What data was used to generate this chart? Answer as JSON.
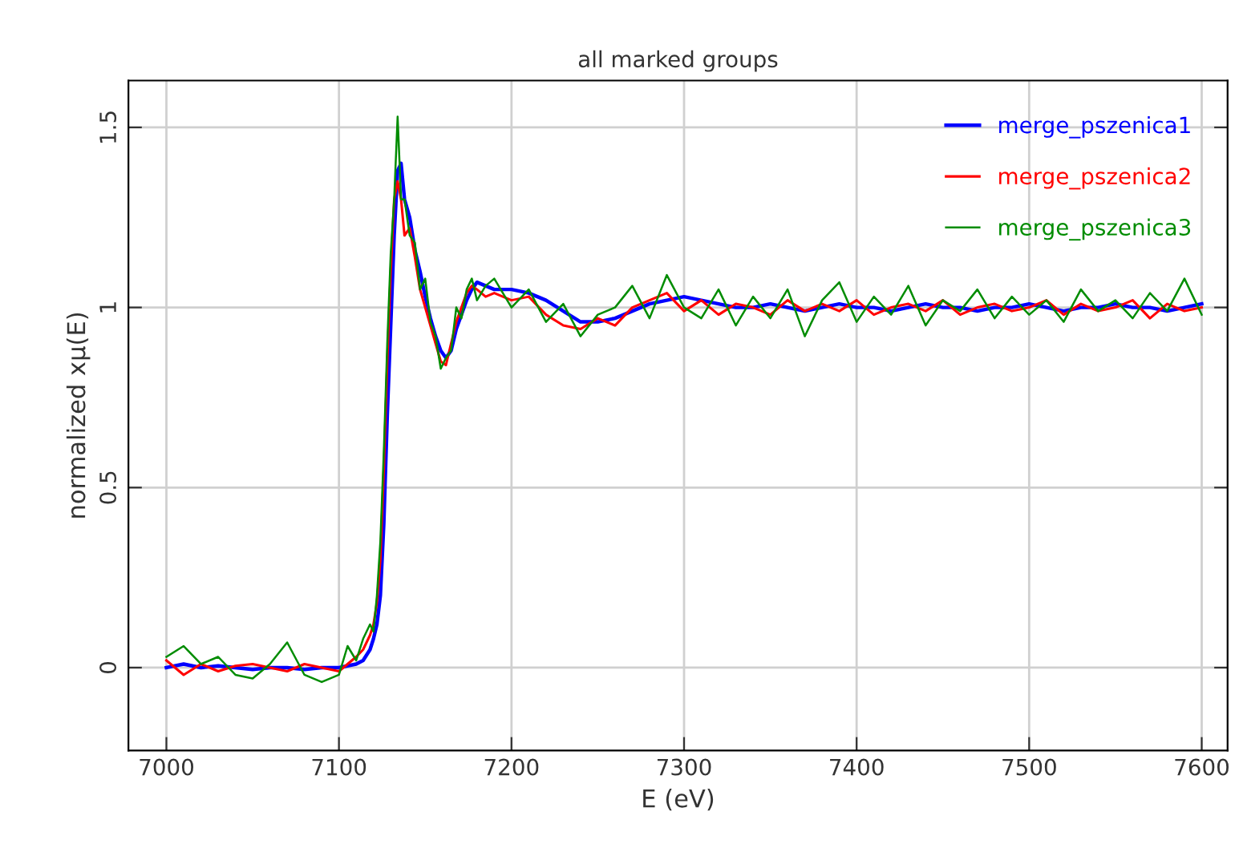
{
  "chart_data": {
    "type": "line",
    "title": "all marked groups",
    "xlabel": "E (eV)",
    "ylabel": "normalized xμ(E)",
    "x": [
      7000,
      7010,
      7020,
      7030,
      7040,
      7050,
      7060,
      7070,
      7080,
      7090,
      7100,
      7105,
      7110,
      7114,
      7118,
      7120,
      7122,
      7124,
      7126,
      7128,
      7130,
      7132,
      7134,
      7136,
      7138,
      7141,
      7144,
      7147,
      7150,
      7153,
      7156,
      7159,
      7162,
      7165,
      7168,
      7171,
      7174,
      7177,
      7180,
      7185,
      7190,
      7200,
      7210,
      7220,
      7230,
      7240,
      7250,
      7260,
      7270,
      7280,
      7290,
      7300,
      7310,
      7320,
      7330,
      7340,
      7350,
      7360,
      7370,
      7380,
      7390,
      7400,
      7410,
      7420,
      7430,
      7440,
      7450,
      7460,
      7470,
      7480,
      7490,
      7500,
      7510,
      7520,
      7530,
      7540,
      7550,
      7560,
      7570,
      7580,
      7590,
      7600
    ],
    "series": [
      {
        "name": "merge_pszenica1",
        "color": "#0000ff",
        "values": [
          0,
          0.01,
          0,
          0.005,
          0,
          -0.005,
          0,
          0,
          -0.005,
          0,
          0,
          0.005,
          0.01,
          0.02,
          0.05,
          0.08,
          0.12,
          0.2,
          0.4,
          0.7,
          0.95,
          1.2,
          1.38,
          1.4,
          1.3,
          1.25,
          1.16,
          1.1,
          1.03,
          0.97,
          0.92,
          0.88,
          0.86,
          0.88,
          0.94,
          0.98,
          1.02,
          1.05,
          1.07,
          1.06,
          1.05,
          1.05,
          1.04,
          1.02,
          0.99,
          0.96,
          0.96,
          0.97,
          0.99,
          1.01,
          1.02,
          1.03,
          1.02,
          1.01,
          1.0,
          1.0,
          1.01,
          1.0,
          0.99,
          1.0,
          1.01,
          1.0,
          1.0,
          0.99,
          1.0,
          1.01,
          1.0,
          1.0,
          0.99,
          1.0,
          1.0,
          1.01,
          1.0,
          0.99,
          1.0,
          1.0,
          1.01,
          1.0,
          1.0,
          0.99,
          1.0,
          1.01
        ]
      },
      {
        "name": "merge_pszenica2",
        "color": "#ff0000",
        "values": [
          0.02,
          -0.02,
          0.01,
          -0.01,
          0.005,
          0.01,
          0,
          -0.01,
          0.01,
          0,
          -0.01,
          0.01,
          0.03,
          0.05,
          0.09,
          0.12,
          0.18,
          0.3,
          0.55,
          0.85,
          1.1,
          1.3,
          1.35,
          1.3,
          1.2,
          1.22,
          1.14,
          1.05,
          1.0,
          0.95,
          0.9,
          0.85,
          0.84,
          0.9,
          0.96,
          1.0,
          1.04,
          1.06,
          1.05,
          1.03,
          1.04,
          1.02,
          1.03,
          0.98,
          0.95,
          0.94,
          0.97,
          0.95,
          1.0,
          1.02,
          1.04,
          0.99,
          1.02,
          0.98,
          1.01,
          1.0,
          0.98,
          1.02,
          0.99,
          1.01,
          0.99,
          1.02,
          0.98,
          1.0,
          1.01,
          0.99,
          1.02,
          0.98,
          1.0,
          1.01,
          0.99,
          1.0,
          1.02,
          0.98,
          1.01,
          0.99,
          1.0,
          1.02,
          0.97,
          1.01,
          0.99,
          1.0
        ]
      },
      {
        "name": "merge_pszenica3",
        "color": "#008c00",
        "values": [
          0.03,
          0.06,
          0.01,
          0.03,
          -0.02,
          -0.03,
          0.01,
          0.07,
          -0.02,
          -0.04,
          -0.02,
          0.06,
          0.02,
          0.08,
          0.12,
          0.1,
          0.2,
          0.35,
          0.6,
          0.9,
          1.15,
          1.3,
          1.53,
          1.3,
          1.3,
          1.2,
          1.18,
          1.05,
          1.08,
          0.96,
          0.92,
          0.83,
          0.86,
          0.88,
          1.0,
          0.97,
          1.05,
          1.08,
          1.02,
          1.06,
          1.08,
          1.0,
          1.05,
          0.96,
          1.01,
          0.92,
          0.98,
          1.0,
          1.06,
          0.97,
          1.09,
          1.0,
          0.97,
          1.05,
          0.95,
          1.03,
          0.97,
          1.05,
          0.92,
          1.02,
          1.07,
          0.96,
          1.03,
          0.98,
          1.06,
          0.95,
          1.02,
          0.99,
          1.05,
          0.97,
          1.03,
          0.98,
          1.02,
          0.96,
          1.05,
          0.99,
          1.02,
          0.97,
          1.04,
          0.99,
          1.08,
          0.98
        ]
      }
    ],
    "xlim": [
      6978,
      7615
    ],
    "ylim": [
      -0.23,
      1.63
    ],
    "xticks": [
      7000,
      7100,
      7200,
      7300,
      7400,
      7500,
      7600
    ],
    "yticks": [
      0,
      0.5,
      1,
      1.5
    ],
    "grid": true,
    "legend": "top right",
    "marker": "none",
    "line_style": "solid"
  }
}
